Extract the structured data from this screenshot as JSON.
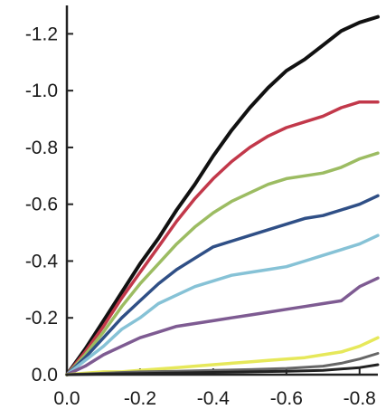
{
  "chart_data": {
    "type": "line",
    "title": "",
    "xlabel": "",
    "ylabel": "",
    "xlim": [
      0.0,
      -0.85
    ],
    "ylim": [
      0.0,
      -1.3
    ],
    "x_ticks": [
      {
        "value": 0.0,
        "label": "0.0"
      },
      {
        "value": -0.2,
        "label": "-0.2"
      },
      {
        "value": -0.4,
        "label": "-0.4"
      },
      {
        "value": -0.6,
        "label": "-0.6"
      },
      {
        "value": -0.8,
        "label": "-0.8"
      }
    ],
    "y_ticks": [
      {
        "value": 0.0,
        "label": "0.0"
      },
      {
        "value": -0.2,
        "label": "-0.2"
      },
      {
        "value": -0.4,
        "label": "-0.4"
      },
      {
        "value": -0.6,
        "label": "-0.6"
      },
      {
        "value": -0.8,
        "label": "-0.8"
      },
      {
        "value": -1.0,
        "label": "-1.0"
      },
      {
        "value": -1.2,
        "label": "-1.2"
      }
    ],
    "grid": false,
    "legend": "none",
    "series": [
      {
        "color": "#111111",
        "width": 4,
        "x": [
          0,
          -0.05,
          -0.1,
          -0.15,
          -0.2,
          -0.25,
          -0.3,
          -0.35,
          -0.4,
          -0.45,
          -0.5,
          -0.55,
          -0.6,
          -0.65,
          -0.7,
          -0.75,
          -0.8,
          -0.85
        ],
        "y": [
          0,
          -0.09,
          -0.19,
          -0.29,
          -0.39,
          -0.48,
          -0.58,
          -0.67,
          -0.77,
          -0.86,
          -0.94,
          -1.01,
          -1.07,
          -1.11,
          -1.16,
          -1.21,
          -1.24,
          -1.26
        ]
      },
      {
        "color": "#c2384a",
        "width": 3.5,
        "x": [
          0,
          -0.05,
          -0.1,
          -0.15,
          -0.2,
          -0.25,
          -0.3,
          -0.35,
          -0.4,
          -0.45,
          -0.5,
          -0.55,
          -0.6,
          -0.65,
          -0.7,
          -0.75,
          -0.8,
          -0.85
        ],
        "y": [
          0,
          -0.08,
          -0.17,
          -0.27,
          -0.36,
          -0.45,
          -0.54,
          -0.62,
          -0.69,
          -0.75,
          -0.8,
          -0.84,
          -0.87,
          -0.89,
          -0.91,
          -0.94,
          -0.96,
          -0.96
        ]
      },
      {
        "color": "#9cbc62",
        "width": 3.5,
        "x": [
          0,
          -0.05,
          -0.1,
          -0.15,
          -0.2,
          -0.25,
          -0.3,
          -0.35,
          -0.4,
          -0.45,
          -0.5,
          -0.55,
          -0.6,
          -0.65,
          -0.7,
          -0.75,
          -0.8,
          -0.85
        ],
        "y": [
          0,
          -0.07,
          -0.15,
          -0.24,
          -0.32,
          -0.39,
          -0.46,
          -0.52,
          -0.57,
          -0.61,
          -0.64,
          -0.67,
          -0.69,
          -0.7,
          -0.71,
          -0.73,
          -0.76,
          -0.78
        ]
      },
      {
        "color": "#2f4f86",
        "width": 3.5,
        "x": [
          0,
          -0.05,
          -0.1,
          -0.15,
          -0.2,
          -0.25,
          -0.3,
          -0.35,
          -0.4,
          -0.45,
          -0.5,
          -0.55,
          -0.6,
          -0.65,
          -0.7,
          -0.75,
          -0.8,
          -0.85
        ],
        "y": [
          0,
          -0.06,
          -0.13,
          -0.2,
          -0.26,
          -0.32,
          -0.37,
          -0.41,
          -0.45,
          -0.47,
          -0.49,
          -0.51,
          -0.53,
          -0.55,
          -0.56,
          -0.58,
          -0.6,
          -0.63
        ]
      },
      {
        "color": "#86c2d6",
        "width": 3.5,
        "x": [
          0,
          -0.05,
          -0.1,
          -0.15,
          -0.2,
          -0.25,
          -0.3,
          -0.35,
          -0.4,
          -0.45,
          -0.5,
          -0.55,
          -0.6,
          -0.65,
          -0.7,
          -0.75,
          -0.8,
          -0.85
        ],
        "y": [
          0,
          -0.05,
          -0.1,
          -0.16,
          -0.2,
          -0.25,
          -0.28,
          -0.31,
          -0.33,
          -0.35,
          -0.36,
          -0.37,
          -0.38,
          -0.4,
          -0.42,
          -0.44,
          -0.46,
          -0.49
        ]
      },
      {
        "color": "#7e5b92",
        "width": 3.5,
        "x": [
          0,
          -0.05,
          -0.1,
          -0.15,
          -0.2,
          -0.25,
          -0.3,
          -0.35,
          -0.4,
          -0.45,
          -0.5,
          -0.55,
          -0.6,
          -0.65,
          -0.7,
          -0.75,
          -0.8,
          -0.85
        ],
        "y": [
          0,
          -0.03,
          -0.07,
          -0.1,
          -0.13,
          -0.15,
          -0.17,
          -0.18,
          -0.19,
          -0.2,
          -0.21,
          -0.22,
          -0.23,
          -0.24,
          -0.25,
          -0.26,
          -0.31,
          -0.34
        ]
      },
      {
        "color": "#e6e85a",
        "width": 3.5,
        "x": [
          0,
          -0.05,
          -0.1,
          -0.15,
          -0.2,
          -0.25,
          -0.3,
          -0.35,
          -0.4,
          -0.45,
          -0.5,
          -0.55,
          -0.6,
          -0.65,
          -0.7,
          -0.75,
          -0.8,
          -0.85
        ],
        "y": [
          0,
          -0.005,
          -0.01,
          -0.01,
          -0.015,
          -0.02,
          -0.025,
          -0.03,
          -0.035,
          -0.04,
          -0.045,
          -0.05,
          -0.055,
          -0.06,
          -0.07,
          -0.08,
          -0.1,
          -0.13
        ]
      },
      {
        "color": "#666666",
        "width": 3,
        "x": [
          0,
          -0.1,
          -0.2,
          -0.3,
          -0.4,
          -0.5,
          -0.6,
          -0.7,
          -0.75,
          -0.8,
          -0.85
        ],
        "y": [
          0,
          -0.005,
          -0.01,
          -0.012,
          -0.015,
          -0.018,
          -0.022,
          -0.03,
          -0.04,
          -0.055,
          -0.075
        ]
      },
      {
        "color": "#222222",
        "width": 3,
        "x": [
          0,
          -0.1,
          -0.2,
          -0.3,
          -0.4,
          -0.5,
          -0.6,
          -0.7,
          -0.8,
          -0.85
        ],
        "y": [
          0,
          -0.002,
          -0.004,
          -0.006,
          -0.008,
          -0.01,
          -0.012,
          -0.015,
          -0.025,
          -0.035
        ]
      }
    ]
  }
}
